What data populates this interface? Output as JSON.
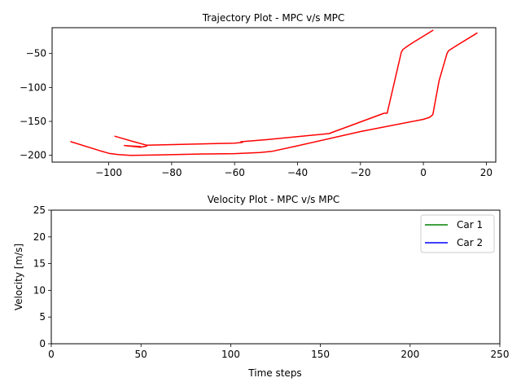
{
  "chart_data": [
    {
      "type": "line",
      "title": "Trajectory Plot - MPC v/s MPC",
      "xlabel": "",
      "ylabel": "",
      "xlim": [
        -118,
        23
      ],
      "ylim": [
        -210,
        -12
      ],
      "xticks": [
        -100,
        -80,
        -60,
        -40,
        -20,
        0,
        20
      ],
      "xtick_labels": [
        "−100",
        "−80",
        "−60",
        "−40",
        "−20",
        "0",
        "20"
      ],
      "yticks": [
        -50,
        -100,
        -150,
        -200
      ],
      "ytick_labels": [
        "−50",
        "−100",
        "−150",
        "−200"
      ],
      "grid": false,
      "series": [
        {
          "color": "#ff0000",
          "x": [
            -112,
            -103,
            -100,
            -97,
            -93,
            -85,
            -70,
            -60,
            -52,
            -48,
            -40,
            -20,
            0,
            2,
            3,
            5,
            7.5,
            8,
            10,
            17
          ],
          "y": [
            -180,
            -193,
            -197,
            -199,
            -200,
            -199.5,
            -198,
            -197.5,
            -196,
            -194,
            -186,
            -165,
            -147,
            -144,
            -140,
            -90,
            -50,
            -46,
            -40,
            -20
          ]
        },
        {
          "color": "#ff0000",
          "x": [
            -98,
            -92,
            -88,
            -60,
            -57.5,
            -58,
            -50,
            -30,
            -12.5,
            -11.5,
            -7,
            -6.5,
            -5,
            -3,
            3
          ],
          "y": [
            -172,
            -180,
            -185,
            -182,
            -181,
            -180,
            -177,
            -168,
            -138,
            -138,
            -48,
            -44,
            -39,
            -33,
            -16
          ]
        },
        {
          "color": "#ff0000",
          "x": [
            -94,
            -90
          ],
          "y": [
            -186,
            -187
          ]
        },
        {
          "color": "#ff0000",
          "x": [
            -95,
            -90,
            -88
          ],
          "y": [
            -185.5,
            -188,
            -186.5
          ]
        }
      ]
    },
    {
      "type": "line",
      "title": "Velocity Plot - MPC v/s MPC",
      "xlabel": "Time steps",
      "ylabel": "Velocity [m/s]",
      "xlim": [
        0,
        250
      ],
      "ylim": [
        0,
        25
      ],
      "xticks": [
        0,
        50,
        100,
        150,
        200,
        250
      ],
      "xtick_labels": [
        "0",
        "50",
        "100",
        "150",
        "200",
        "250"
      ],
      "yticks": [
        0,
        5,
        10,
        15,
        20,
        25
      ],
      "ytick_labels": [
        "0",
        "5",
        "10",
        "15",
        "20",
        "25"
      ],
      "grid": false,
      "legend_position": "top-right",
      "series": [
        {
          "name": "Car 1",
          "color": "#008000",
          "x": [],
          "y": []
        },
        {
          "name": "Car 2",
          "color": "#0000ff",
          "x": [],
          "y": []
        }
      ]
    }
  ]
}
